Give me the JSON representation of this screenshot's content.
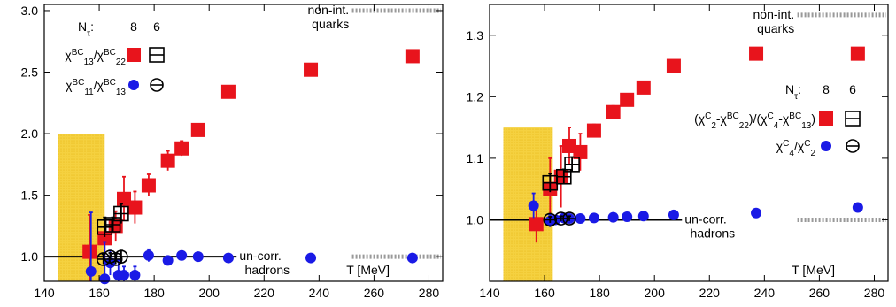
{
  "chart_data": [
    {
      "type": "scatter",
      "xlim": [
        140,
        285
      ],
      "ylim": [
        0.8,
        3.05
      ],
      "x_ticks": [
        140,
        160,
        180,
        200,
        220,
        240,
        260,
        280
      ],
      "y_ticks": [
        1.0,
        1.5,
        2.0,
        2.5,
        3.0
      ],
      "y_tick_labels": [
        "1.0",
        "1.5",
        "2.0",
        "2.5",
        "3.0"
      ],
      "x_label": "T [MeV]",
      "grid": false,
      "band": {
        "x": [
          145,
          162
        ],
        "y": [
          0.7,
          2.0
        ],
        "color": "#f2c200"
      },
      "reference_lines": [
        {
          "label": "non-int. quarks",
          "x": [
            252,
            285
          ],
          "y": 3.0,
          "style": "dotted-gray"
        },
        {
          "label": "un-corr. hadrons",
          "x": [
            140,
            210
          ],
          "y": 1.0,
          "style": "solid-black"
        },
        {
          "label": "",
          "x": [
            252,
            285
          ],
          "y": 1.0,
          "style": "dotted-gray"
        }
      ],
      "annotations": {
        "upper": "non-int.",
        "lower": "quarks",
        "h1": "un-corr.",
        "h2": "hadrons"
      },
      "legend": {
        "nt_label": "N",
        "nt_sub": "τ",
        "nt_values": [
          "8",
          "6"
        ],
        "rows": [
          {
            "name_html": "χ<tspan baseline-shift='super' class='sup'>BC</tspan><tspan baseline-shift='sub' class='sup'>13</tspan>/χ<tspan baseline-shift='super' class='sup'>BC</tspan><tspan baseline-shift='sub' class='sup'>22</tspan>",
            "marker8": "red-square",
            "marker6": "open-square"
          },
          {
            "name_html": "χ<tspan baseline-shift='super' class='sup'>BC</tspan><tspan baseline-shift='sub' class='sup'>11</tspan>/χ<tspan baseline-shift='super' class='sup'>BC</tspan><tspan baseline-shift='sub' class='sup'>13</tspan>",
            "marker8": "blue-circle",
            "marker6": "open-circle"
          }
        ]
      },
      "series": [
        {
          "name": "χ13BC/χ22BC Nτ=8",
          "marker": "red-square",
          "color": "#e8141c",
          "points": [
            [
              156.5,
              1.04,
              0.3
            ],
            [
              162,
              1.15,
              0.15
            ],
            [
              166,
              1.25,
              0.12
            ],
            [
              169,
              1.47,
              0.18
            ],
            [
              173,
              1.4,
              0.13
            ],
            [
              178,
              1.58,
              0.09
            ],
            [
              185,
              1.78,
              0.08
            ],
            [
              190,
              1.88,
              0.06
            ],
            [
              196,
              2.03,
              0.04
            ],
            [
              207,
              2.34,
              0.04
            ],
            [
              237,
              2.52,
              0.03
            ],
            [
              274,
              2.63,
              0.02
            ]
          ]
        },
        {
          "name": "χ13BC/χ22BC Nτ=6",
          "marker": "open-square",
          "color": "#000000",
          "points": [
            [
              162,
              1.24,
              0.08
            ],
            [
              165,
              1.26,
              0.06
            ],
            [
              168,
              1.35,
              0.08
            ]
          ]
        },
        {
          "name": "χ11BC/χ13BC Nτ=8",
          "marker": "blue-circle",
          "color": "#1a1ae6",
          "points": [
            [
              157,
              0.88,
              0.48
            ],
            [
              162,
              0.82,
              0.3
            ],
            [
              164,
              0.95,
              0.1
            ],
            [
              167,
              0.85,
              0.12
            ],
            [
              169,
              0.85,
              0.07
            ],
            [
              173,
              0.85,
              0.07
            ],
            [
              178,
              1.01,
              0.05
            ],
            [
              185,
              0.97,
              0.03
            ],
            [
              190,
              1.01,
              0.02
            ],
            [
              196,
              1.0,
              0.02
            ],
            [
              207,
              0.99,
              0.02
            ],
            [
              237,
              0.99,
              0.01
            ],
            [
              274,
              0.99,
              0.01
            ]
          ]
        },
        {
          "name": "χ11BC/χ13BC Nτ=6",
          "marker": "open-circle",
          "color": "#000000",
          "points": [
            [
              161.5,
              0.98,
              0.04
            ],
            [
              164,
              1.0,
              0.03
            ],
            [
              166,
              0.98,
              0.04
            ],
            [
              168,
              1.0,
              0.05
            ]
          ]
        }
      ]
    },
    {
      "type": "scatter",
      "xlim": [
        140,
        285
      ],
      "ylim": [
        0.9,
        1.35
      ],
      "x_ticks": [
        140,
        160,
        180,
        200,
        220,
        240,
        260,
        280
      ],
      "y_ticks": [
        1.0,
        1.1,
        1.2,
        1.3
      ],
      "y_tick_labels": [
        "1.0",
        "1.1",
        "1.2",
        "1.3"
      ],
      "x_label": "T [MeV]",
      "grid": false,
      "band": {
        "x": [
          145,
          163
        ],
        "y": [
          0.9,
          1.15
        ],
        "color": "#f2c200"
      },
      "reference_lines": [
        {
          "label": "non-int. quarks",
          "x": [
            252,
            285
          ],
          "y": 1.333,
          "style": "dotted-gray"
        },
        {
          "label": "un-corr. hadrons",
          "x": [
            140,
            210
          ],
          "y": 1.0,
          "style": "solid-black"
        },
        {
          "label": "",
          "x": [
            252,
            285
          ],
          "y": 1.0,
          "style": "dotted-gray"
        }
      ],
      "annotations": {
        "upper": "non-int.",
        "lower": "quarks",
        "h1": "un-corr.",
        "h2": "hadrons"
      },
      "legend": {
        "nt_label": "N",
        "nt_sub": "τ",
        "nt_values": [
          "8",
          "6"
        ],
        "rows": [
          {
            "name_html": "(χ<tspan baseline-shift='super' class='sup'>C</tspan><tspan baseline-shift='sub' class='sup'>2</tspan>-χ<tspan baseline-shift='super' class='sup'>BC</tspan><tspan baseline-shift='sub' class='sup'>22</tspan>)/(χ<tspan baseline-shift='super' class='sup'>C</tspan><tspan baseline-shift='sub' class='sup'>4</tspan>-χ<tspan baseline-shift='super' class='sup'>BC</tspan><tspan baseline-shift='sub' class='sup'>13</tspan>)",
            "marker8": "red-square",
            "marker6": "open-square"
          },
          {
            "name_html": "χ<tspan baseline-shift='super' class='sup'>C</tspan><tspan baseline-shift='sub' class='sup'>4</tspan>/χ<tspan baseline-shift='super' class='sup'>C</tspan><tspan baseline-shift='sub' class='sup'>2</tspan>",
            "marker8": "blue-circle",
            "marker6": "open-circle"
          }
        ]
      },
      "series": [
        {
          "name": "ratio Nτ=8",
          "marker": "red-square",
          "color": "#e8141c",
          "points": [
            [
              157,
              0.993,
              0.03
            ],
            [
              162,
              1.05,
              0.05
            ],
            [
              166,
              1.07,
              0.05
            ],
            [
              169,
              1.12,
              0.03
            ],
            [
              173,
              1.11,
              0.03
            ],
            [
              178,
              1.145,
              0.01
            ],
            [
              185,
              1.175,
              0.01
            ],
            [
              190,
              1.195,
              0.008
            ],
            [
              196,
              1.215,
              0.006
            ],
            [
              207,
              1.25,
              0.005
            ],
            [
              237,
              1.27,
              0.004
            ],
            [
              274,
              1.27,
              0.004
            ]
          ]
        },
        {
          "name": "ratio Nτ=6",
          "marker": "open-square",
          "color": "#000000",
          "points": [
            [
              162,
              1.06,
              0.015
            ],
            [
              167,
              1.07,
              0.012
            ],
            [
              170,
              1.09,
              0.012
            ]
          ]
        },
        {
          "name": "χ4C/χ2C Nτ=8",
          "marker": "blue-circle",
          "color": "#1a1ae6",
          "points": [
            [
              156,
              1.023,
              0.02
            ],
            [
              162,
              0.998,
              0.01
            ],
            [
              164,
              1.0,
              0.005
            ],
            [
              167,
              1.003,
              0.004
            ],
            [
              169,
              1.002,
              0.003
            ],
            [
              173,
              1.002,
              0.003
            ],
            [
              178,
              1.003,
              0.002
            ],
            [
              185,
              1.004,
              0.002
            ],
            [
              190,
              1.005,
              0.002
            ],
            [
              196,
              1.006,
              0.002
            ],
            [
              207,
              1.008,
              0.002
            ],
            [
              237,
              1.011,
              0.001
            ],
            [
              274,
              1.02,
              0.001
            ]
          ]
        },
        {
          "name": "χ4C/χ2C Nτ=6",
          "marker": "open-circle",
          "color": "#000000",
          "points": [
            [
              162,
              1.0,
              0.005
            ],
            [
              166,
              1.002,
              0.004
            ],
            [
              169,
              1.002,
              0.004
            ]
          ]
        }
      ]
    }
  ]
}
